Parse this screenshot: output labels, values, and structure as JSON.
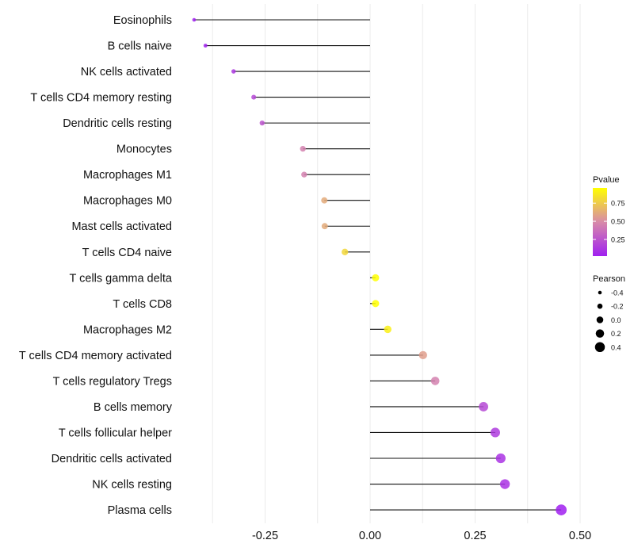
{
  "chart_data": {
    "type": "lollipop",
    "title": "",
    "xlabel": "",
    "ylabel": "",
    "xlim": [
      -0.44,
      0.5
    ],
    "x_ticks": [
      -0.25,
      0.0,
      0.25,
      0.5
    ],
    "x_tick_labels": [
      "-0.25",
      "0.00",
      "0.25",
      "0.50"
    ],
    "grid": true,
    "categories": [
      "Eosinophils",
      "B cells naive",
      "NK cells activated",
      "T cells CD4 memory resting",
      "Dendritic cells resting",
      "Monocytes",
      "Macrophages M1",
      "Macrophages M0",
      "Mast cells activated",
      "T cells CD4 naive",
      "T cells gamma delta",
      "T cells CD8",
      "Macrophages M2",
      "T cells CD4 memory activated",
      "T cells regulatory  Tregs",
      "B cells memory",
      "T cells follicular helper",
      "Dendritic cells activated",
      "NK cells resting",
      "Plasma cells"
    ],
    "pearson": [
      -0.419,
      -0.392,
      -0.325,
      -0.277,
      -0.257,
      -0.16,
      -0.157,
      -0.109,
      -0.108,
      -0.06,
      0.013,
      0.013,
      0.042,
      0.126,
      0.155,
      0.27,
      0.298,
      0.311,
      0.321,
      0.455
    ],
    "pvalue": [
      0.01,
      0.03,
      0.12,
      0.2,
      0.25,
      0.45,
      0.45,
      0.62,
      0.62,
      0.8,
      0.97,
      0.97,
      0.9,
      0.57,
      0.45,
      0.2,
      0.14,
      0.1,
      0.1,
      0.01
    ],
    "legend_color": {
      "title": "Pvalue",
      "ticks": [
        0.25,
        0.5,
        0.75
      ],
      "tick_labels": [
        "0.25",
        "0.50",
        "0.75"
      ],
      "range": [
        0.02,
        0.96
      ],
      "low_color": "#a020f0",
      "mid_color": "#d88aa9",
      "high_color": "#ffff00",
      "placement": "right"
    },
    "legend_size": {
      "title": "Pearson",
      "values": [
        -0.4,
        -0.2,
        0.0,
        0.2,
        0.4
      ],
      "labels": [
        "-0.4",
        "-0.2",
        "0.0",
        "0.2",
        "0.4"
      ],
      "placement": "right"
    }
  }
}
